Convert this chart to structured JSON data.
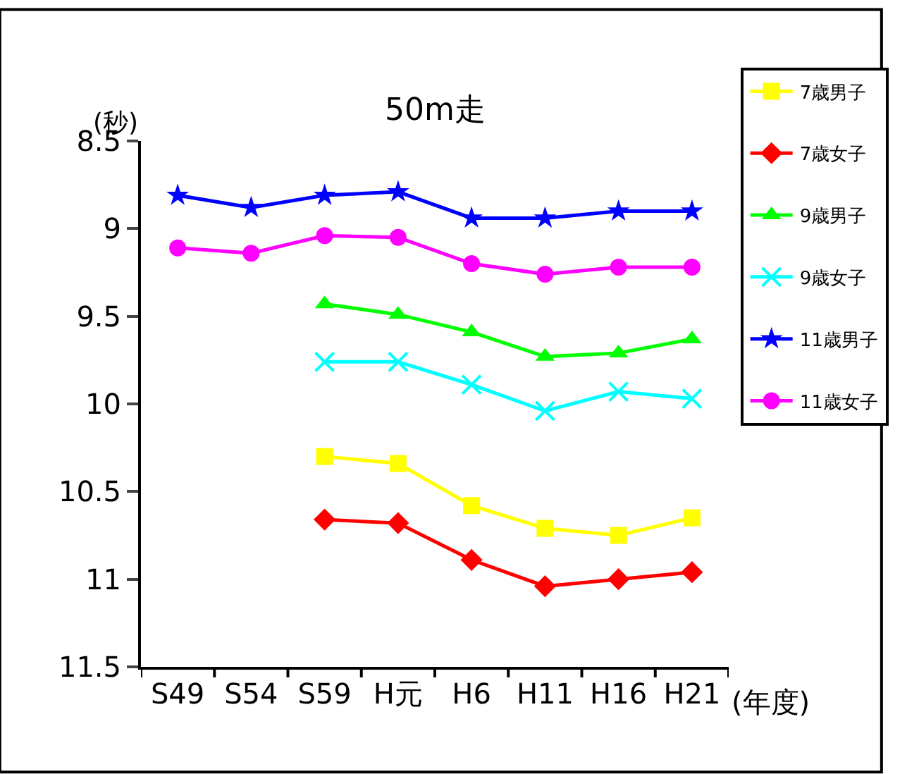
{
  "chart_data": {
    "type": "line",
    "title": "50m走",
    "ylabel": "(秒)",
    "xlabel": "(年度)",
    "categories": [
      "S49",
      "S54",
      "S59",
      "H元",
      "H6",
      "H11",
      "H16",
      "H21"
    ],
    "ylim": [
      11.5,
      8.5
    ],
    "yticks": [
      8.5,
      9,
      9.5,
      10,
      10.5,
      11,
      11.5
    ],
    "legend": "right",
    "line_style": "solid",
    "series": [
      {
        "name": "7歳男子",
        "color": "#ffff00",
        "marker": "square",
        "values": [
          null,
          null,
          10.3,
          10.34,
          10.58,
          10.71,
          10.75,
          10.65
        ]
      },
      {
        "name": "7歳女子",
        "color": "#ff0000",
        "marker": "diamond",
        "values": [
          null,
          null,
          10.66,
          10.68,
          10.89,
          11.04,
          11.0,
          10.96
        ]
      },
      {
        "name": "9歳男子",
        "color": "#00ff00",
        "marker": "triangle",
        "values": [
          null,
          null,
          9.43,
          9.49,
          9.59,
          9.73,
          9.71,
          9.63
        ]
      },
      {
        "name": "9歳女子",
        "color": "#00ffff",
        "marker": "cross",
        "values": [
          null,
          null,
          9.76,
          9.76,
          9.89,
          10.04,
          9.93,
          9.97
        ]
      },
      {
        "name": "11歳男子",
        "color": "#0000ff",
        "marker": "star",
        "values": [
          8.81,
          8.88,
          8.81,
          8.79,
          8.94,
          8.94,
          8.9,
          8.9
        ]
      },
      {
        "name": "11歳女子",
        "color": "#ff00ff",
        "marker": "circle",
        "values": [
          9.11,
          9.14,
          9.04,
          9.05,
          9.2,
          9.26,
          9.22,
          9.22
        ]
      }
    ]
  }
}
